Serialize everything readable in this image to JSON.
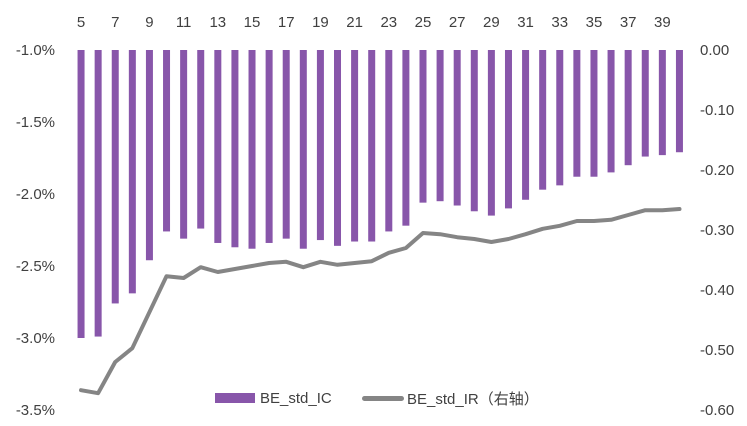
{
  "chart_data": {
    "type": "bar+line",
    "categories": [
      5,
      6,
      7,
      8,
      9,
      10,
      11,
      12,
      13,
      14,
      15,
      16,
      17,
      18,
      19,
      20,
      21,
      22,
      23,
      24,
      25,
      26,
      27,
      28,
      29,
      30,
      31,
      32,
      33,
      34,
      35,
      36,
      37,
      38,
      39,
      40
    ],
    "x_tick_labels": [
      "5",
      "7",
      "9",
      "11",
      "13",
      "15",
      "17",
      "19",
      "21",
      "23",
      "25",
      "27",
      "29",
      "31",
      "33",
      "35",
      "37",
      "39"
    ],
    "series": [
      {
        "name": "BE_std_IC",
        "type": "bar",
        "axis": "left",
        "color": "#8856aa",
        "values": [
          -3.0,
          -2.99,
          -2.76,
          -2.69,
          -2.46,
          -2.26,
          -2.31,
          -2.24,
          -2.34,
          -2.37,
          -2.38,
          -2.34,
          -2.31,
          -2.38,
          -2.32,
          -2.36,
          -2.33,
          -2.33,
          -2.26,
          -2.22,
          -2.06,
          -2.05,
          -2.08,
          -2.12,
          -2.15,
          -2.1,
          -2.04,
          -1.97,
          -1.94,
          -1.88,
          -1.88,
          -1.85,
          -1.8,
          -1.74,
          -1.73,
          -1.71
        ]
      },
      {
        "name": "BE_std_IR（右轴）",
        "type": "line",
        "axis": "right",
        "color": "#858585",
        "values": [
          -0.567,
          -0.572,
          -0.52,
          -0.497,
          -0.437,
          -0.377,
          -0.38,
          -0.362,
          -0.37,
          -0.365,
          -0.36,
          -0.355,
          -0.353,
          -0.362,
          -0.353,
          -0.358,
          -0.355,
          -0.352,
          -0.338,
          -0.33,
          -0.305,
          -0.307,
          -0.312,
          -0.315,
          -0.32,
          -0.315,
          -0.307,
          -0.298,
          -0.293,
          -0.285,
          -0.285,
          -0.283,
          -0.275,
          -0.267,
          -0.267,
          -0.265
        ]
      }
    ],
    "y_left": {
      "range": [
        -3.5,
        -1.0
      ],
      "ticks": [
        "-1.0%",
        "-1.5%",
        "-2.0%",
        "-2.5%",
        "-3.0%",
        "-3.5%"
      ]
    },
    "y_right": {
      "range": [
        -0.6,
        0.0
      ],
      "ticks": [
        "0.00",
        "-0.10",
        "-0.20",
        "-0.30",
        "-0.40",
        "-0.50",
        "-0.60"
      ]
    },
    "x_axis_position": "top",
    "grid": false,
    "legend": {
      "placement": "bottom-center",
      "bar_label": "BE_std_IC",
      "line_label": "BE_std_IR（右轴）"
    }
  }
}
